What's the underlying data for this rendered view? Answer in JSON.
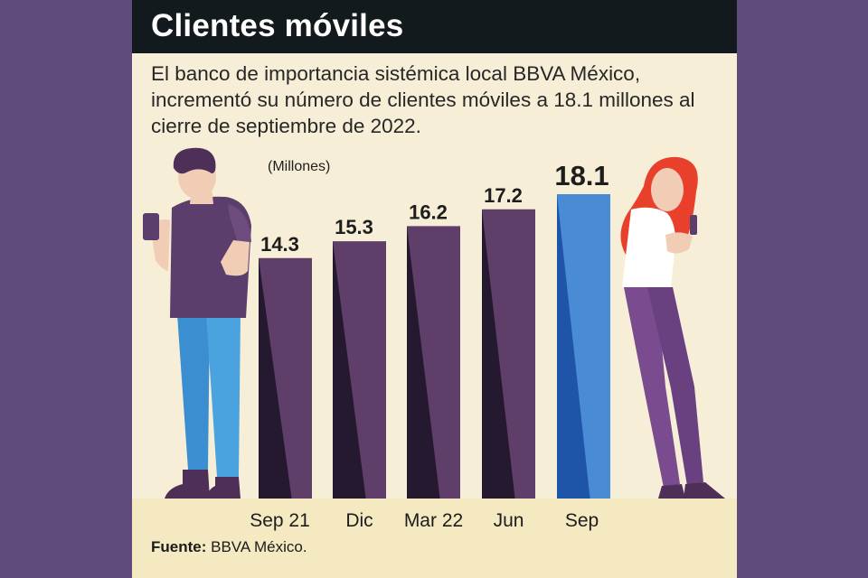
{
  "header": {
    "title": "Clientes móviles",
    "subtitle": "El banco de importancia sistémica local BBVA México, incrementó su número de clientes móviles a 18.1 millones al cierre de septiembre de 2022."
  },
  "chart_data": {
    "type": "bar",
    "unit_label": "(Millones)",
    "categories": [
      "Sep 21",
      "Dic",
      "Mar 22",
      "Jun",
      "Sep"
    ],
    "values": [
      14.3,
      15.3,
      16.2,
      17.2,
      18.1
    ],
    "value_labels": [
      "14.3",
      "15.3",
      "16.2",
      "17.2",
      "18.1"
    ],
    "highlight_index": 4,
    "colors": {
      "bar_dark": "#25192f",
      "bar_mid": "#5f3f6a",
      "highlight_dark": "#1f55a8",
      "highlight_light": "#4a8bd6"
    },
    "ylim": [
      0,
      18.1
    ]
  },
  "footer": {
    "source_label": "Fuente:",
    "source_value": "BBVA México."
  },
  "colors": {
    "page_background": "#5f4b7c",
    "card_background": "#f6eed6",
    "title_bar": "#121a1d"
  }
}
